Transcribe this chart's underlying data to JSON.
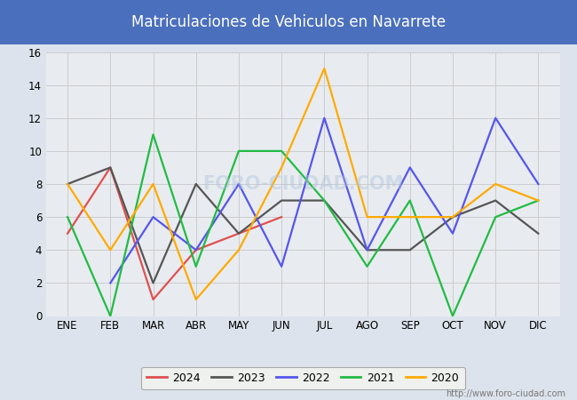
{
  "title": "Matriculaciones de Vehiculos en Navarrete",
  "title_bg_color": "#4a6fbd",
  "title_text_color": "#ffffff",
  "months": [
    "ENE",
    "FEB",
    "MAR",
    "ABR",
    "MAY",
    "JUN",
    "JUL",
    "AGO",
    "SEP",
    "OCT",
    "NOV",
    "DIC"
  ],
  "series": {
    "2024": {
      "color": "#e05050",
      "data": [
        5,
        9,
        1,
        4,
        5,
        6,
        null,
        null,
        null,
        null,
        null,
        null
      ]
    },
    "2023": {
      "color": "#555555",
      "data": [
        8,
        9,
        2,
        8,
        5,
        7,
        7,
        4,
        4,
        6,
        7,
        5
      ]
    },
    "2022": {
      "color": "#5555ee",
      "data": [
        null,
        2,
        6,
        4,
        8,
        3,
        12,
        4,
        9,
        5,
        12,
        8
      ]
    },
    "2021": {
      "color": "#22bb44",
      "data": [
        6,
        0,
        11,
        3,
        10,
        10,
        7,
        3,
        7,
        0,
        6,
        7
      ]
    },
    "2020": {
      "color": "#ffaa00",
      "data": [
        8,
        4,
        8,
        1,
        4,
        9,
        15,
        6,
        6,
        6,
        8,
        7
      ]
    }
  },
  "ylim": [
    0,
    16
  ],
  "yticks": [
    0,
    2,
    4,
    6,
    8,
    10,
    12,
    14,
    16
  ],
  "grid_color": "#cccccc",
  "outer_bg_color": "#dce3ec",
  "plot_bg_color": "#e8ecf0",
  "watermark": "http://www.foro-ciudad.com",
  "legend_order": [
    "2024",
    "2023",
    "2022",
    "2021",
    "2020"
  ]
}
